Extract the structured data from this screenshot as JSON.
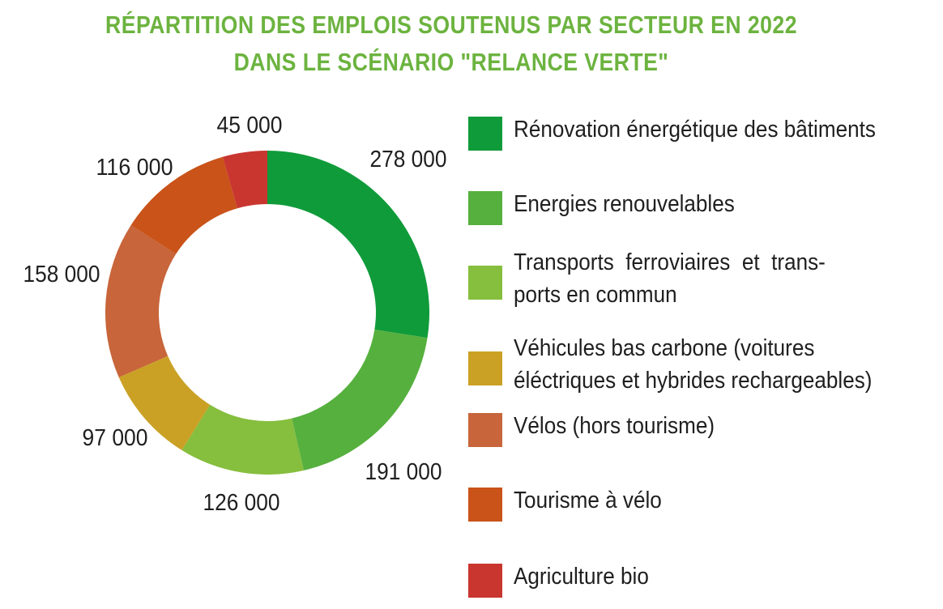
{
  "title_line1": "RÉPARTITION DES EMPLOIS SOUTENUS PAR SECTEUR EN 2022",
  "title_line2": "DANS LE SCÉNARIO \"RELANCE VERTE\"",
  "chart_data": {
    "type": "pie",
    "title": "RÉPARTITION DES EMPLOIS SOUTENUS PAR SECTEUR EN 2022 DANS LE SCÉNARIO \"RELANCE VERTE\"",
    "donut": true,
    "legend_position": "right",
    "slices": [
      {
        "label": "Rénovation énergétique des bâtiments",
        "value": 278000,
        "value_label": "278 000",
        "color": "#109b3a"
      },
      {
        "label": "Energies renouvelables",
        "value": 191000,
        "value_label": "191 000",
        "color": "#56b03e"
      },
      {
        "label": "Transports ferroviaires et trans-ports en commun",
        "value": 126000,
        "value_label": "126 000",
        "color": "#86be3e"
      },
      {
        "label": "Véhicules bas carbone (voitures éléctriques et hybrides rechargeables)",
        "value": 97000,
        "value_label": "97 000",
        "color": "#caa125"
      },
      {
        "label": "Vélos (hors tourisme)",
        "value": 158000,
        "value_label": "158 000",
        "color": "#c8653a"
      },
      {
        "label": "Tourisme à vélo",
        "value": 116000,
        "value_label": "116 000",
        "color": "#c95319"
      },
      {
        "label": "Agriculture bio",
        "value": 45000,
        "value_label": "45 000",
        "color": "#c93630"
      }
    ]
  },
  "legend": [
    {
      "lines": [
        "Rénovation énergétique des bâtiments"
      ],
      "color": "#109b3a"
    },
    {
      "lines": [
        "Energies renouvelables"
      ],
      "color": "#56b03e"
    },
    {
      "lines": [
        "Transports  ferroviaires  et  trans-",
        "ports en commun"
      ],
      "color": "#86be3e"
    },
    {
      "lines": [
        "Véhicules bas carbone (voitures",
        "éléctriques et hybrides rechargeables)"
      ],
      "color": "#caa125"
    },
    {
      "lines": [
        "Vélos (hors tourisme)"
      ],
      "color": "#c8653a"
    },
    {
      "lines": [
        "Tourisme à vélo"
      ],
      "color": "#c95319"
    },
    {
      "lines": [
        "Agriculture bio"
      ],
      "color": "#c93630"
    }
  ]
}
